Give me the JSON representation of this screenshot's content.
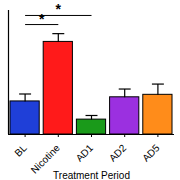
{
  "chart_data": {
    "type": "bar",
    "xlabel": "Treatment Period",
    "categories": [
      "BL",
      "Nicotine",
      "AD1",
      "AD2",
      "AD5"
    ],
    "values": [
      40,
      112,
      18,
      45,
      48
    ],
    "errors": [
      9,
      10,
      5,
      10,
      13
    ],
    "colors": [
      "#1f3fd8",
      "#ff1a1a",
      "#1a9a1a",
      "#9b30e0",
      "#ff8c1a"
    ],
    "ylim": [
      0,
      150
    ],
    "tick_labels": "x",
    "annotations": [
      {
        "from": "BL",
        "to": "Nicotine",
        "y": 133,
        "text": "*"
      },
      {
        "from": "BL",
        "to": "AD1",
        "y": 144,
        "text": "*"
      }
    ]
  }
}
